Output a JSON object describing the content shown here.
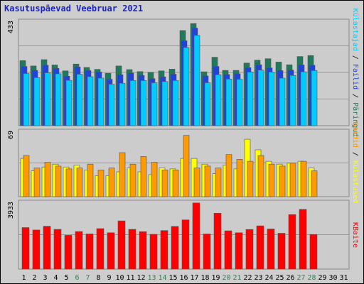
{
  "title": "Kasutuspäevad Veebruar 2021",
  "chart_data": [
    {
      "type": "bar",
      "panel": "top",
      "ymax_label": "433",
      "ylim": [
        0,
        433
      ],
      "categories": [
        "1",
        "2",
        "3",
        "4",
        "5",
        "6",
        "7",
        "8",
        "9",
        "10",
        "11",
        "12",
        "13",
        "14",
        "15",
        "16",
        "17",
        "18",
        "19",
        "20",
        "21",
        "22",
        "23",
        "24",
        "25",
        "26",
        "27",
        "28",
        "29",
        "30",
        "31"
      ],
      "legend": {
        "placement": "right",
        "entries": [
          "Külastajad",
          "Failid",
          "Päringud"
        ],
        "separator": " / "
      },
      "series": [
        {
          "name": "Päringud",
          "color": "#1f7a5c",
          "values": [
            268,
            246,
            272,
            250,
            226,
            254,
            240,
            232,
            216,
            246,
            231,
            223,
            220,
            226,
            233,
            392,
            421,
            222,
            282,
            228,
            228,
            258,
            270,
            276,
            262,
            251,
            285,
            289,
            0,
            0,
            0
          ]
        },
        {
          "name": "Failid",
          "color": "#2043dd",
          "values": [
            244,
            228,
            249,
            236,
            204,
            242,
            227,
            221,
            191,
            210,
            217,
            207,
            194,
            201,
            212,
            350,
            402,
            205,
            244,
            211,
            214,
            239,
            251,
            238,
            227,
            229,
            250,
            249,
            0,
            0,
            0
          ]
        },
        {
          "name": "Külastajad",
          "color": "#00ccff",
          "values": [
            215,
            198,
            218,
            214,
            187,
            212,
            202,
            196,
            171,
            175,
            186,
            186,
            177,
            182,
            186,
            322,
            372,
            177,
            210,
            192,
            191,
            221,
            229,
            221,
            196,
            207,
            222,
            227,
            0,
            0,
            0
          ]
        }
      ]
    },
    {
      "type": "bar",
      "panel": "middle",
      "ymax_label": "69",
      "ylim": [
        0,
        69
      ],
      "legend": {
        "placement": "right",
        "entries": [
          "Saidid",
          "Külastused"
        ],
        "separator": " / "
      },
      "series": [
        {
          "name": "Külastused",
          "color": "#ffff00",
          "values": [
            40,
            27,
            31,
            34,
            31,
            33,
            28,
            22,
            22,
            26,
            30,
            26,
            23,
            30,
            29,
            40,
            40,
            34,
            24,
            33,
            29,
            60,
            49,
            37,
            34,
            35,
            37,
            30,
            0,
            0,
            0
          ]
        },
        {
          "name": "Saidid",
          "color": "#ff9900",
          "values": [
            43,
            30,
            36,
            32,
            29,
            30,
            34,
            28,
            30,
            46,
            34,
            42,
            36,
            28,
            28,
            64,
            30,
            32,
            30,
            44,
            39,
            37,
            43,
            34,
            32,
            35,
            37,
            27,
            0,
            0,
            0
          ]
        }
      ]
    },
    {
      "type": "bar",
      "panel": "bottom",
      "ymax_label": "3933",
      "ylim": [
        0,
        3933
      ],
      "legend": {
        "placement": "right",
        "entries": [
          "KBaite"
        ],
        "separator": ""
      },
      "series": [
        {
          "name": "KBaite",
          "color": "#ff0000",
          "values": [
            2420,
            2280,
            2500,
            2320,
            1970,
            2190,
            2050,
            2360,
            2120,
            2810,
            2320,
            2180,
            2030,
            2250,
            2490,
            2870,
            3860,
            2050,
            3260,
            2230,
            2120,
            2310,
            2520,
            2340,
            2090,
            3180,
            3480,
            2020,
            0,
            0,
            0
          ]
        }
      ]
    }
  ],
  "colors": {
    "background": "#cecece",
    "plot_bg": "#ccc",
    "title": "#1b24c4",
    "weekend_label": "#2b8a55",
    "label": "#000000"
  },
  "weekend_days": [
    6,
    7,
    13,
    14,
    20,
    21,
    27,
    28
  ]
}
